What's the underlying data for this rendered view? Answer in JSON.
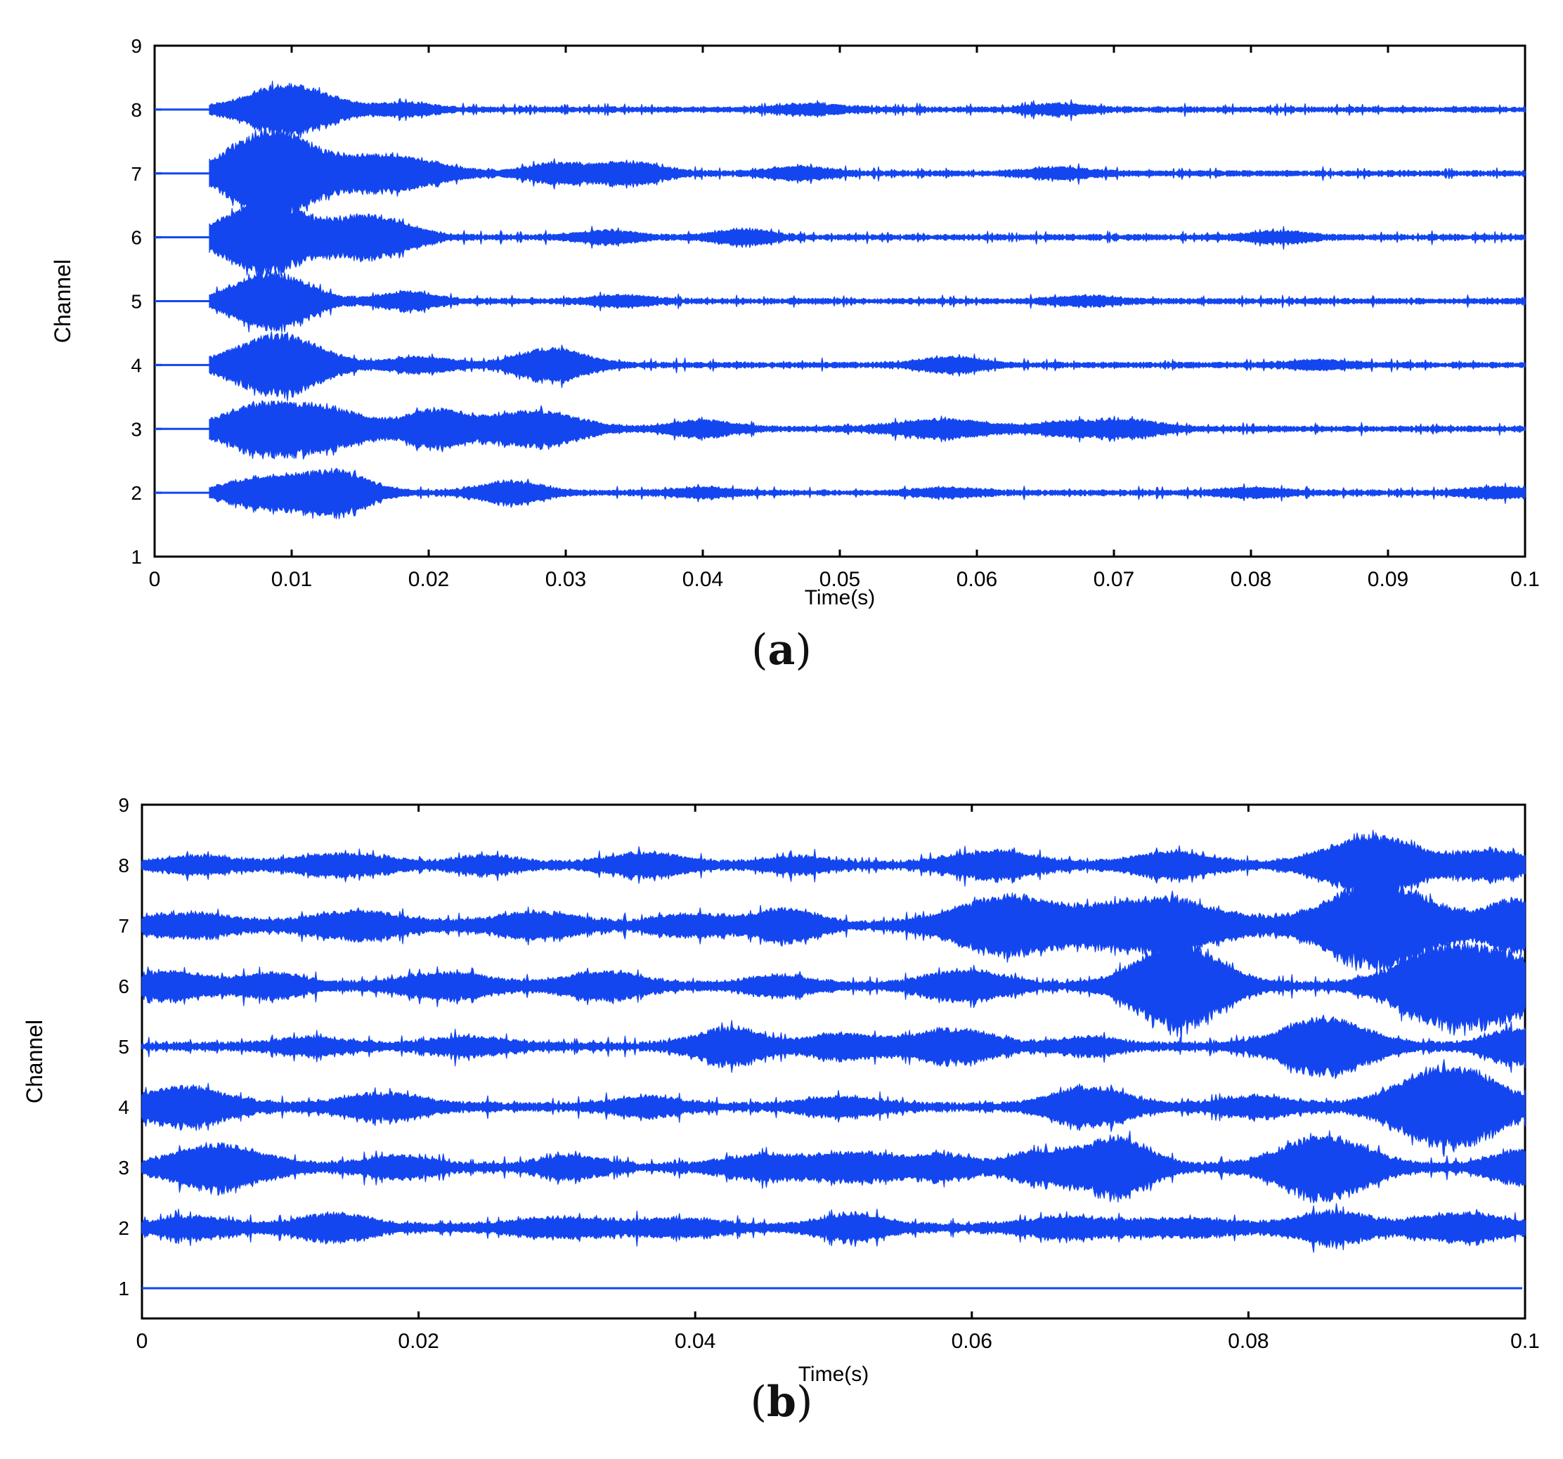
{
  "chart_data": [
    {
      "panel": "a",
      "type": "line",
      "caption_letter": "a",
      "xlabel": "Time(s)",
      "ylabel": "Channel",
      "xlim": [
        0,
        0.1
      ],
      "ylim": [
        1,
        9
      ],
      "xticks": [
        "0",
        "0.01",
        "0.02",
        "0.03",
        "0.04",
        "0.05",
        "0.06",
        "0.07",
        "0.08",
        "0.09",
        "0.1"
      ],
      "yticks": [
        "1",
        "2",
        "3",
        "4",
        "5",
        "6",
        "7",
        "8",
        "9"
      ],
      "line_color": "#1446f0",
      "signal_start": 0.004,
      "noise_amplitude": 0.03,
      "series": [
        {
          "channel": 2,
          "bursts": [
            [
              0.008,
              0.0025,
              0.2
            ],
            [
              0.0132,
              0.0022,
              0.28
            ],
            [
              0.026,
              0.002,
              0.14
            ],
            [
              0.04,
              0.002,
              0.05
            ],
            [
              0.058,
              0.002,
              0.05
            ],
            [
              0.08,
              0.002,
              0.05
            ],
            [
              0.098,
              0.002,
              0.06
            ]
          ]
        },
        {
          "channel": 3,
          "bursts": [
            [
              0.0075,
              0.0025,
              0.3
            ],
            [
              0.0125,
              0.0025,
              0.27
            ],
            [
              0.0205,
              0.0022,
              0.25
            ],
            [
              0.0278,
              0.0028,
              0.24
            ],
            [
              0.04,
              0.002,
              0.1
            ],
            [
              0.0575,
              0.003,
              0.11
            ],
            [
              0.067,
              0.002,
              0.09
            ],
            [
              0.0715,
              0.0018,
              0.1
            ]
          ]
        },
        {
          "channel": 4,
          "bursts": [
            [
              0.009,
              0.0028,
              0.42
            ],
            [
              0.0195,
              0.002,
              0.09
            ],
            [
              0.029,
              0.0022,
              0.22
            ],
            [
              0.058,
              0.002,
              0.09
            ],
            [
              0.085,
              0.002,
              0.05
            ]
          ]
        },
        {
          "channel": 5,
          "bursts": [
            [
              0.0085,
              0.0025,
              0.38
            ],
            [
              0.0185,
              0.0018,
              0.11
            ],
            [
              0.034,
              0.002,
              0.06
            ],
            [
              0.068,
              0.002,
              0.05
            ]
          ]
        },
        {
          "channel": 6,
          "bursts": [
            [
              0.008,
              0.0028,
              0.48
            ],
            [
              0.0158,
              0.0025,
              0.28
            ],
            [
              0.033,
              0.002,
              0.07
            ],
            [
              0.043,
              0.0018,
              0.09
            ],
            [
              0.082,
              0.002,
              0.06
            ]
          ]
        },
        {
          "channel": 7,
          "bursts": [
            [
              0.0085,
              0.0028,
              0.6
            ],
            [
              0.017,
              0.0032,
              0.24
            ],
            [
              0.0292,
              0.0018,
              0.12
            ],
            [
              0.0345,
              0.0022,
              0.14
            ],
            [
              0.047,
              0.002,
              0.07
            ],
            [
              0.066,
              0.002,
              0.06
            ]
          ]
        },
        {
          "channel": 8,
          "bursts": [
            [
              0.0098,
              0.0028,
              0.33
            ],
            [
              0.0185,
              0.0018,
              0.07
            ],
            [
              0.048,
              0.002,
              0.06
            ],
            [
              0.066,
              0.002,
              0.06
            ]
          ]
        }
      ]
    },
    {
      "panel": "b",
      "type": "line",
      "caption_letter": "b",
      "xlabel": "Time(s)",
      "ylabel": "Channel",
      "xlim": [
        0,
        0.1
      ],
      "ylim": [
        0.5,
        9
      ],
      "xticks": [
        "0",
        "0.02",
        "0.04",
        "0.06",
        "0.08",
        "0.1"
      ],
      "yticks": [
        "1",
        "2",
        "3",
        "4",
        "5",
        "6",
        "7",
        "8",
        "9"
      ],
      "line_color": "#1446f0",
      "signal_start": 0.0,
      "noise_amplitude": 0.05,
      "series": [
        {
          "channel": 1,
          "bursts": []
        },
        {
          "channel": 2,
          "bursts": [
            [
              0.0035,
              0.0025,
              0.13
            ],
            [
              0.014,
              0.0025,
              0.17
            ],
            [
              0.03,
              0.003,
              0.11
            ],
            [
              0.0385,
              0.003,
              0.1
            ],
            [
              0.0515,
              0.0022,
              0.16
            ],
            [
              0.067,
              0.003,
              0.12
            ],
            [
              0.0755,
              0.003,
              0.1
            ],
            [
              0.086,
              0.0025,
              0.2
            ],
            [
              0.0955,
              0.003,
              0.18
            ]
          ]
        },
        {
          "channel": 3,
          "bursts": [
            [
              0.0055,
              0.003,
              0.3
            ],
            [
              0.0185,
              0.0025,
              0.13
            ],
            [
              0.031,
              0.0022,
              0.14
            ],
            [
              0.045,
              0.0028,
              0.15
            ],
            [
              0.052,
              0.0025,
              0.18
            ],
            [
              0.058,
              0.0018,
              0.15
            ],
            [
              0.065,
              0.0022,
              0.2
            ],
            [
              0.0705,
              0.0022,
              0.4
            ],
            [
              0.0855,
              0.003,
              0.42
            ],
            [
              0.0995,
              0.002,
              0.2
            ]
          ]
        },
        {
          "channel": 4,
          "bursts": [
            [
              0.003,
              0.003,
              0.26
            ],
            [
              0.0175,
              0.0028,
              0.16
            ],
            [
              0.0365,
              0.0022,
              0.12
            ],
            [
              0.0505,
              0.0025,
              0.11
            ],
            [
              0.0685,
              0.0025,
              0.26
            ],
            [
              0.0805,
              0.0025,
              0.12
            ],
            [
              0.0945,
              0.0032,
              0.58
            ]
          ]
        },
        {
          "channel": 5,
          "bursts": [
            [
              0.0125,
              0.0025,
              0.09
            ],
            [
              0.0235,
              0.0025,
              0.11
            ],
            [
              0.0425,
              0.0022,
              0.24
            ],
            [
              0.0505,
              0.0022,
              0.15
            ],
            [
              0.0585,
              0.0028,
              0.22
            ],
            [
              0.0685,
              0.002,
              0.11
            ],
            [
              0.0855,
              0.0028,
              0.4
            ],
            [
              0.0995,
              0.002,
              0.22
            ]
          ]
        },
        {
          "channel": 6,
          "bursts": [
            [
              0.002,
              0.0025,
              0.18
            ],
            [
              0.0095,
              0.0022,
              0.15
            ],
            [
              0.022,
              0.003,
              0.16
            ],
            [
              0.0335,
              0.0025,
              0.18
            ],
            [
              0.046,
              0.0022,
              0.12
            ],
            [
              0.0595,
              0.0025,
              0.2
            ],
            [
              0.075,
              0.0028,
              0.6
            ],
            [
              0.0945,
              0.0032,
              0.58
            ],
            [
              0.0995,
              0.002,
              0.25
            ]
          ]
        },
        {
          "channel": 7,
          "bursts": [
            [
              0.0035,
              0.003,
              0.14
            ],
            [
              0.0155,
              0.003,
              0.18
            ],
            [
              0.0285,
              0.003,
              0.16
            ],
            [
              0.0395,
              0.0022,
              0.14
            ],
            [
              0.0465,
              0.0022,
              0.21
            ],
            [
              0.0625,
              0.0035,
              0.4
            ],
            [
              0.0735,
              0.004,
              0.38
            ],
            [
              0.0895,
              0.0035,
              0.6
            ],
            [
              0.0995,
              0.002,
              0.35
            ]
          ]
        },
        {
          "channel": 8,
          "bursts": [
            [
              0.004,
              0.0025,
              0.1
            ],
            [
              0.0145,
              0.003,
              0.13
            ],
            [
              0.025,
              0.002,
              0.1
            ],
            [
              0.0365,
              0.0025,
              0.14
            ],
            [
              0.0475,
              0.002,
              0.09
            ],
            [
              0.0615,
              0.0028,
              0.17
            ],
            [
              0.0745,
              0.0025,
              0.16
            ],
            [
              0.089,
              0.003,
              0.4
            ],
            [
              0.0975,
              0.0022,
              0.18
            ]
          ]
        }
      ]
    }
  ]
}
